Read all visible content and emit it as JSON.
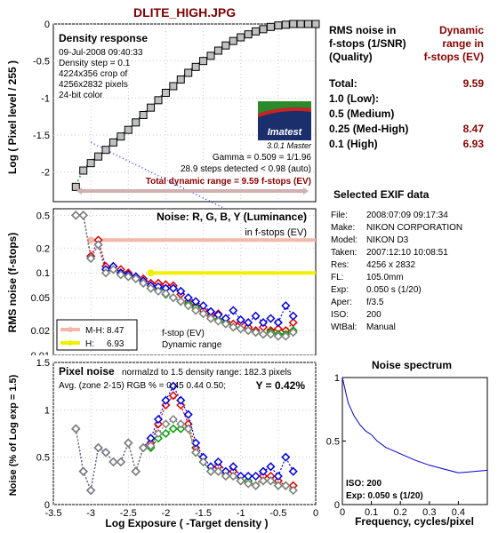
{
  "page_title": "DLITE_HIGH.JPG",
  "density": {
    "heading": "Density response",
    "info": [
      "09-Jul-2008 09:40:33",
      "Density step = 0.1",
      "4224x356 crop of",
      "4256x2832 pixels",
      "24-bit color"
    ],
    "logo_text": "Imatest",
    "version": "3.0.1  Master",
    "gamma": "Gamma = 0.509 = 1/1.96",
    "steps": "28.9 steps detected < 0.98 (auto)",
    "total_dr": "Total dynamic range = 9.59 f-stops (EV)"
  },
  "noise": {
    "heading": "Noise: R, G, B, Y (Luminance)",
    "unit_note": "in f-stops (EV)",
    "legend": [
      {
        "label": "M-H:",
        "value": "8.47",
        "color": "#f4b8a8"
      },
      {
        "label": "H:",
        "value": "6.93",
        "color": "#f0f000"
      }
    ],
    "legend_caption": [
      "f-stop (EV)",
      "Dynamic range"
    ]
  },
  "pixel_noise": {
    "heading": "Pixel noise",
    "norm_note": "normalzd to 1.5 density range: 182.3 pixels",
    "avg_note": "Avg. (zone 2-15) RGB % = 0.45  0.44  0.50;",
    "y_note": "Y = 0.42%"
  },
  "results": {
    "col1_header": [
      "RMS noise in",
      "f-stops (1/SNR)",
      "(Quality)"
    ],
    "col2_header": [
      "Dynamic",
      "range in",
      "f-stops (EV)"
    ],
    "rows": [
      {
        "label": "Total:",
        "value": "9.59"
      },
      {
        "label": "1.0   (Low):",
        "value": ""
      },
      {
        "label": "0.5   (Medium)",
        "value": ""
      },
      {
        "label": "0.25 (Med-High)",
        "value": "8.47"
      },
      {
        "label": "0.1   (High)",
        "value": "6.93"
      }
    ]
  },
  "exif": {
    "heading": "Selected EXIF data",
    "rows": [
      {
        "key": "File:",
        "value": "2008:07:09 09:17:34"
      },
      {
        "key": "Make:",
        "value": "NIKON CORPORATION"
      },
      {
        "key": "Model:",
        "value": "NIKON D3"
      },
      {
        "key": "Taken:",
        "value": "2007:12:10 10:08:51"
      },
      {
        "key": "Res:",
        "value": "4256 x 2832"
      },
      {
        "key": "FL:",
        "value": "105.0mm"
      },
      {
        "key": "Exp:",
        "value": "0.050 s  (1/20)"
      },
      {
        "key": "Aper:",
        "value": "f/3.5"
      },
      {
        "key": "ISO:",
        "value": "200"
      },
      {
        "key": "WtBal:",
        "value": "Manual"
      }
    ]
  },
  "spectrum": {
    "heading": "Noise spectrum",
    "iso_note": "ISO:   200",
    "exp_note": "Exp:   0.050 s   (1/20)"
  },
  "colors": {
    "red": "#e00000",
    "green": "#00a000",
    "blue": "#0000e0",
    "gray": "#808080",
    "mh": "#f4b8a8",
    "h": "#f0f000",
    "dr_bar": "#d0b0b0"
  },
  "chart_data": [
    {
      "type": "scatter",
      "name": "density",
      "ylabel": "Log ( Pixel level / 255 )",
      "xlim": [
        -3.5,
        0
      ],
      "ylim": [
        -2.4,
        0
      ],
      "yticks": [
        0,
        -0.5,
        -1,
        -1.5,
        -2
      ],
      "x": [
        -3.2,
        -3.1,
        -3.0,
        -2.9,
        -2.8,
        -2.7,
        -2.6,
        -2.5,
        -2.4,
        -2.3,
        -2.2,
        -2.1,
        -2.0,
        -1.9,
        -1.8,
        -1.7,
        -1.6,
        -1.5,
        -1.4,
        -1.3,
        -1.2,
        -1.1,
        -1.0,
        -0.9,
        -0.8,
        -0.7,
        -0.6,
        -0.5,
        -0.4,
        -0.3,
        -0.2,
        -0.1,
        0.0
      ],
      "y": [
        -2.2,
        -1.98,
        -1.88,
        -1.79,
        -1.7,
        -1.6,
        -1.52,
        -1.43,
        -1.33,
        -1.23,
        -1.13,
        -1.03,
        -0.93,
        -0.84,
        -0.75,
        -0.66,
        -0.58,
        -0.5,
        -0.43,
        -0.36,
        -0.29,
        -0.23,
        -0.18,
        -0.14,
        -0.1,
        -0.07,
        -0.04,
        -0.02,
        -0.01,
        0,
        0,
        0,
        0
      ],
      "grid": true
    },
    {
      "type": "line",
      "name": "rms_noise",
      "ylabel": "RMS noise (f-stops)",
      "xlim": [
        -3.5,
        0
      ],
      "yticks": [
        "0.5",
        "0.2",
        "0.1",
        "0.05",
        "0.02",
        "0.01"
      ],
      "yscale": "log",
      "x": [
        -3.2,
        -3.1,
        -3.0,
        -2.9,
        -2.8,
        -2.7,
        -2.6,
        -2.5,
        -2.4,
        -2.3,
        -2.2,
        -2.1,
        -2.0,
        -1.9,
        -1.8,
        -1.7,
        -1.6,
        -1.5,
        -1.4,
        -1.3,
        -1.2,
        -1.1,
        -1.0,
        -0.9,
        -0.8,
        -0.7,
        -0.6,
        -0.5,
        -0.4,
        -0.3
      ],
      "series": [
        {
          "color": "#e00000",
          "values": [
            0.5,
            0.5,
            0.16,
            0.25,
            0.12,
            0.12,
            0.11,
            0.1,
            0.09,
            0.085,
            0.075,
            0.075,
            0.072,
            0.07,
            0.055,
            0.045,
            0.04,
            0.035,
            0.03,
            0.032,
            0.028,
            0.024,
            0.025,
            0.022,
            0.02,
            0.022,
            0.02,
            0.021,
            0.02,
            0.025
          ]
        },
        {
          "color": "#00a000",
          "values": [
            0.5,
            0.5,
            0.15,
            0.22,
            0.1,
            0.11,
            0.1,
            0.09,
            0.085,
            0.075,
            0.065,
            0.062,
            0.055,
            0.05,
            0.045,
            0.042,
            0.038,
            0.032,
            0.028,
            0.027,
            0.025,
            0.022,
            0.021,
            0.02,
            0.019,
            0.018,
            0.019,
            0.018,
            0.018,
            0.02
          ]
        },
        {
          "color": "#0000e0",
          "values": [
            0.5,
            0.5,
            0.15,
            0.22,
            0.11,
            0.12,
            0.1,
            0.095,
            0.09,
            0.08,
            0.07,
            0.068,
            0.065,
            0.065,
            0.06,
            0.05,
            0.045,
            0.04,
            0.034,
            0.031,
            0.028,
            0.035,
            0.027,
            0.025,
            0.03,
            0.025,
            0.028,
            0.025,
            0.04,
            0.03
          ]
        },
        {
          "color": "#808080",
          "values": [
            0.5,
            0.5,
            0.15,
            0.22,
            0.1,
            0.11,
            0.095,
            0.09,
            0.085,
            0.075,
            0.065,
            0.06,
            0.056,
            0.05,
            0.045,
            0.04,
            0.035,
            0.032,
            0.028,
            0.026,
            0.024,
            0.022,
            0.021,
            0.02,
            0.019,
            0.018,
            0.018,
            0.017,
            0.017,
            0.019
          ]
        }
      ],
      "hlines": [
        {
          "y": 0.25,
          "from": -3.0,
          "to": 0.0,
          "color": "#f4b8a8"
        },
        {
          "y": 0.1,
          "from": -2.2,
          "to": 0.0,
          "color": "#f0f000"
        }
      ]
    },
    {
      "type": "line",
      "name": "pixel_noise",
      "ylabel": "Noise (% of Log exp = 1.5)",
      "xlabel": "Log Exposure  ( -Target density )",
      "xlim": [
        -3.5,
        0
      ],
      "ylim": [
        0,
        1.5
      ],
      "xticks": [
        -3.5,
        -3,
        -2.5,
        -2,
        -1.5,
        -1,
        -0.5,
        0
      ],
      "yticks": [
        0,
        0.5,
        1,
        1.5
      ],
      "x": [
        -3.2,
        -3.1,
        -3.0,
        -2.9,
        -2.8,
        -2.7,
        -2.6,
        -2.5,
        -2.4,
        -2.3,
        -2.2,
        -2.1,
        -2.0,
        -1.9,
        -1.8,
        -1.7,
        -1.6,
        -1.5,
        -1.4,
        -1.3,
        -1.2,
        -1.1,
        -1.0,
        -0.9,
        -0.8,
        -0.7,
        -0.6,
        -0.5,
        -0.4,
        -0.3
      ],
      "series": [
        {
          "color": "#e00000",
          "values": [
            0.8,
            0.35,
            0.15,
            0.6,
            0.55,
            0.45,
            0.45,
            0.65,
            0.35,
            0.6,
            0.65,
            0.85,
            1.05,
            1.15,
            1.05,
            0.85,
            0.6,
            0.45,
            0.35,
            0.4,
            0.3,
            0.35,
            0.25,
            0.25,
            0.2,
            0.3,
            0.3,
            0.25,
            0.2,
            0.2
          ]
        },
        {
          "color": "#00a000",
          "values": [
            0.8,
            0.35,
            0.15,
            0.6,
            0.55,
            0.45,
            0.45,
            0.65,
            0.35,
            0.6,
            0.6,
            0.7,
            0.75,
            0.8,
            0.8,
            0.8,
            0.55,
            0.45,
            0.35,
            0.35,
            0.3,
            0.3,
            0.25,
            0.25,
            0.2,
            0.25,
            0.25,
            0.2,
            0.2,
            0.15
          ]
        },
        {
          "color": "#0000e0",
          "values": [
            0.8,
            0.35,
            0.15,
            0.6,
            0.55,
            0.45,
            0.45,
            0.65,
            0.35,
            0.6,
            0.7,
            0.9,
            1.1,
            1.25,
            1.1,
            0.95,
            0.65,
            0.5,
            0.4,
            0.45,
            0.35,
            0.4,
            0.3,
            0.3,
            0.3,
            0.35,
            0.4,
            0.3,
            0.5,
            0.35
          ]
        },
        {
          "color": "#808080",
          "values": [
            0.8,
            0.35,
            0.15,
            0.6,
            0.55,
            0.45,
            0.45,
            0.65,
            0.35,
            0.6,
            0.62,
            0.75,
            0.85,
            0.9,
            0.85,
            0.8,
            0.55,
            0.45,
            0.35,
            0.35,
            0.3,
            0.3,
            0.25,
            0.22,
            0.2,
            0.25,
            0.25,
            0.2,
            0.2,
            0.15
          ]
        }
      ]
    },
    {
      "type": "line",
      "name": "noise_spectrum",
      "xlabel": "Frequency, cycles/pixel",
      "xlim": [
        0,
        0.5
      ],
      "ylim": [
        0,
        1
      ],
      "xticks": [
        0,
        0.1,
        0.2,
        0.3,
        0.4
      ],
      "yticks": [
        0,
        0.5,
        1
      ],
      "x": [
        0,
        0.02,
        0.04,
        0.06,
        0.08,
        0.1,
        0.12,
        0.15,
        0.18,
        0.2,
        0.25,
        0.3,
        0.35,
        0.4,
        0.45,
        0.5
      ],
      "y": [
        1.0,
        0.8,
        0.7,
        0.63,
        0.58,
        0.55,
        0.5,
        0.45,
        0.42,
        0.4,
        0.35,
        0.31,
        0.28,
        0.25,
        0.26,
        0.27
      ]
    }
  ]
}
